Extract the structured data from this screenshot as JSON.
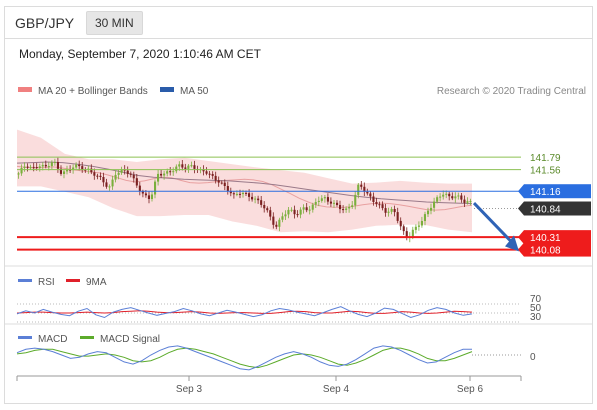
{
  "header": {
    "pair": "GBP/JPY",
    "timeframe": "30 MIN"
  },
  "datetime": "Monday, September 7, 2020 1:10:46 AM CET",
  "legend": {
    "bb": "MA 20 + Bollinger Bands",
    "ma50": "MA 50",
    "research": "Research © 2020 Trading Central"
  },
  "colors": {
    "red": "#ee1c1c",
    "blue": "#2a6ee0",
    "green": "#8cc152",
    "candle_bull": "#7aaf3c",
    "candle_bear": "#7a2020",
    "band": "#f9d7d7",
    "ma": "#9a7a8a",
    "arrow": "#2f63b6",
    "dark_tag": "#333333"
  },
  "chart_data": [
    {
      "type": "candlestick",
      "title": "GBP/JPY 30 MIN",
      "x_ticks": [
        "Sep 3",
        "Sep 4",
        "Sep 6"
      ],
      "y_range": [
        139.85,
        142.7
      ],
      "close_path": [
        141.49,
        141.62,
        141.58,
        141.66,
        141.6,
        141.7,
        141.52,
        141.55,
        141.62,
        141.58,
        141.57,
        141.48,
        141.35,
        141.2,
        141.52,
        141.55,
        141.47,
        141.28,
        141.1,
        141.02,
        141.45,
        141.5,
        141.55,
        141.62,
        141.58,
        141.65,
        141.55,
        141.5,
        141.4,
        141.35,
        141.2,
        141.05,
        141.15,
        141.1,
        141.0,
        140.9,
        140.75,
        140.5,
        140.7,
        140.8,
        140.75,
        140.86,
        140.8,
        141.0,
        141.05,
        140.95,
        140.85,
        140.8,
        140.95,
        141.3,
        141.1,
        141.0,
        140.9,
        140.75,
        140.8,
        140.5,
        140.3,
        140.45,
        140.6,
        140.85,
        141.0,
        141.1,
        141.05,
        141.1,
        140.97,
        140.93
      ],
      "ma20_path": [
        141.62,
        141.6,
        141.59,
        141.6,
        141.61,
        141.59,
        141.56,
        141.54,
        141.52,
        141.5,
        141.46,
        141.41,
        141.36,
        141.33,
        141.35,
        141.39,
        141.42,
        141.41,
        141.36,
        141.32,
        141.31,
        141.32,
        141.34,
        141.36,
        141.37,
        141.38,
        141.37,
        141.34,
        141.28,
        141.2,
        141.12,
        141.03,
        140.96,
        140.9,
        140.87,
        140.86,
        140.86,
        140.88,
        140.91,
        140.93,
        140.94,
        140.93,
        140.91,
        140.88,
        140.85,
        140.82,
        140.81,
        140.82,
        140.85,
        140.88,
        140.9
      ],
      "ma50_path": [
        141.68,
        141.69,
        141.7,
        141.69,
        141.66,
        141.62,
        141.57,
        141.51,
        141.45,
        141.42,
        141.4,
        141.38,
        141.37,
        141.36,
        141.35,
        141.33,
        141.31,
        141.28,
        141.24,
        141.2,
        141.16,
        141.12,
        141.08,
        141.05,
        141.02,
        141.0,
        140.98,
        140.96,
        140.95,
        140.94,
        140.93
      ],
      "bollinger_upper_path": [
        142.3,
        142.15,
        141.85,
        141.75,
        141.75,
        141.7,
        141.75,
        141.78,
        141.72,
        141.66,
        141.6,
        141.55,
        141.5,
        141.4,
        141.3,
        141.32,
        141.35,
        141.32,
        141.3,
        141.3
      ],
      "bollinger_lower_path": [
        141.25,
        141.25,
        141.15,
        141.05,
        140.85,
        140.7,
        140.7,
        140.72,
        140.72,
        140.6,
        140.52,
        140.4,
        140.42,
        140.4,
        140.45,
        140.52,
        140.54,
        140.54,
        140.45,
        140.4
      ],
      "levels": [
        {
          "value": 141.79,
          "label": "141.79",
          "color": "green"
        },
        {
          "value": 141.56,
          "label": "141.56",
          "color": "green"
        },
        {
          "value": 141.16,
          "label": "141.16",
          "color": "blue"
        },
        {
          "value": 140.84,
          "label": "140.84",
          "color": "dark"
        },
        {
          "value": 140.31,
          "label": "140.31",
          "color": "red"
        },
        {
          "value": 140.08,
          "label": "140.08",
          "color": "red"
        }
      ],
      "forecast_arrow": {
        "from": 140.94,
        "to": 140.12
      }
    },
    {
      "type": "line",
      "title": "RSI",
      "series": [
        {
          "name": "RSI"
        },
        {
          "name": "9MA"
        }
      ],
      "y_ticks": [
        "70",
        "50",
        "30"
      ],
      "rsi_path": [
        48,
        55,
        50,
        58,
        52,
        47,
        44,
        54,
        60,
        46,
        40,
        52,
        58,
        62,
        56,
        50,
        45,
        49,
        53,
        60,
        55,
        48,
        44,
        50,
        56,
        52,
        47,
        42,
        46,
        55,
        60,
        57,
        52,
        48,
        44,
        51,
        58,
        64,
        55,
        47,
        42,
        50,
        61,
        58,
        49,
        40,
        46,
        56,
        62,
        58,
        50,
        45,
        48
      ],
      "ma9_path": [
        50,
        51,
        52,
        52,
        51,
        50,
        50,
        51,
        52,
        51,
        50,
        51,
        53,
        54,
        55,
        54,
        52,
        51,
        51,
        52,
        53,
        52,
        50,
        49,
        50,
        51,
        51,
        50,
        49,
        49,
        51,
        53,
        54,
        53,
        51,
        50,
        50,
        52,
        54,
        53,
        51,
        49,
        49,
        51,
        53,
        52,
        50,
        49,
        50,
        52,
        54,
        53,
        52
      ]
    },
    {
      "type": "line",
      "title": "MACD",
      "series": [
        {
          "name": "MACD"
        },
        {
          "name": "MACD Signal"
        }
      ],
      "y_ticks": [
        "0"
      ],
      "macd_path": [
        0.02,
        0.05,
        0.06,
        0.05,
        0.03,
        0.0,
        -0.03,
        -0.02,
        0.01,
        0.03,
        0.02,
        -0.02,
        -0.06,
        -0.08,
        -0.05,
        0.0,
        0.04,
        0.07,
        0.08,
        0.06,
        0.03,
        0.0,
        -0.03,
        -0.06,
        -0.09,
        -0.12,
        -0.13,
        -0.1,
        -0.06,
        -0.02,
        0.01,
        0.03,
        0.01,
        -0.02,
        -0.06,
        -0.09,
        -0.1,
        -0.08,
        -0.04,
        0.01,
        0.06,
        0.08,
        0.07,
        0.04,
        0.0,
        -0.04,
        -0.07,
        -0.06,
        -0.02,
        0.02,
        0.05,
        0.05
      ],
      "signal_path": [
        0.01,
        0.02,
        0.04,
        0.05,
        0.05,
        0.03,
        0.01,
        -0.01,
        -0.01,
        0.0,
        0.01,
        0.0,
        -0.02,
        -0.05,
        -0.06,
        -0.05,
        -0.02,
        0.02,
        0.05,
        0.06,
        0.05,
        0.03,
        0.01,
        -0.02,
        -0.05,
        -0.08,
        -0.1,
        -0.11,
        -0.09,
        -0.06,
        -0.03,
        0.0,
        0.01,
        0.0,
        -0.02,
        -0.05,
        -0.08,
        -0.09,
        -0.07,
        -0.04,
        0.0,
        0.04,
        0.06,
        0.06,
        0.04,
        0.01,
        -0.03,
        -0.05,
        -0.05,
        -0.03,
        0.0,
        0.03
      ]
    }
  ]
}
